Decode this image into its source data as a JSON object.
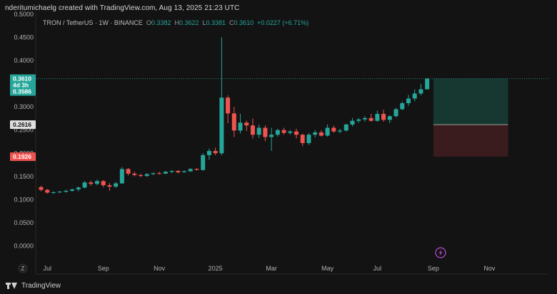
{
  "header": {
    "title": "nderitumichaelg created with TradingView.com, Aug 13, 2025 21:23 UTC"
  },
  "legend": {
    "symbol": "TRON / TetherUS · 1W · BINANCE",
    "o_label": "O",
    "o_value": "0.3382",
    "h_label": "H",
    "h_value": "0.3622",
    "l_label": "L",
    "l_value": "0.3381",
    "c_label": "C",
    "c_value": "0.3610",
    "change": "+0.0227 (+6.71%)"
  },
  "footer": {
    "brand": "TradingView"
  },
  "colors": {
    "up": "#26a69a",
    "down": "#ef5350",
    "background": "#131313",
    "tp_zone": "#163a33",
    "sl_zone": "#3c1c1f"
  },
  "icons": {
    "flash": "lightning-icon",
    "timezone": "z-icon",
    "logo": "tradingview-logo"
  },
  "chart_data": {
    "type": "candlestick",
    "title": "TRON / TetherUS · 1W · BINANCE",
    "ylim": [
      -0.03,
      0.5
    ],
    "y_ticks": [
      0.5,
      0.45,
      0.4,
      0.35,
      0.3,
      0.25,
      0.2,
      0.15,
      0.1,
      0.05,
      0.0
    ],
    "y_tick_labels": [
      "0.5000",
      "0.4500",
      "0.4000",
      "0.3500",
      "0.3000",
      "0.2500",
      "0.2000",
      "0.1500",
      "0.1000",
      "0.0500",
      "0.0000"
    ],
    "x_tick_labels": [
      "Jul",
      "Sep",
      "Nov",
      "2025",
      "Mar",
      "May",
      "Jul",
      "Sep",
      "Nov"
    ],
    "x_tick_weeks": [
      1,
      10,
      19,
      28,
      37,
      46,
      54,
      63,
      72
    ],
    "timezone_label": "Z",
    "price_labels": {
      "current": "0.3610",
      "countdown": "4d 3h",
      "entry_ref": "0.3586",
      "mid": "0.2616",
      "stop": "0.1926"
    },
    "position": {
      "start_week": 63,
      "end_week": 75,
      "target": 0.361,
      "entry": 0.2616,
      "stop": 0.1926
    },
    "candles": [
      {
        "o": 0.127,
        "h": 0.13,
        "l": 0.118,
        "c": 0.121
      },
      {
        "o": 0.121,
        "h": 0.123,
        "l": 0.113,
        "c": 0.115
      },
      {
        "o": 0.115,
        "h": 0.118,
        "l": 0.112,
        "c": 0.116
      },
      {
        "o": 0.116,
        "h": 0.119,
        "l": 0.114,
        "c": 0.117
      },
      {
        "o": 0.117,
        "h": 0.121,
        "l": 0.115,
        "c": 0.119
      },
      {
        "o": 0.119,
        "h": 0.124,
        "l": 0.117,
        "c": 0.122
      },
      {
        "o": 0.122,
        "h": 0.128,
        "l": 0.118,
        "c": 0.126
      },
      {
        "o": 0.126,
        "h": 0.14,
        "l": 0.124,
        "c": 0.137
      },
      {
        "o": 0.137,
        "h": 0.141,
        "l": 0.13,
        "c": 0.134
      },
      {
        "o": 0.134,
        "h": 0.143,
        "l": 0.131,
        "c": 0.14
      },
      {
        "o": 0.14,
        "h": 0.142,
        "l": 0.127,
        "c": 0.131
      },
      {
        "o": 0.131,
        "h": 0.136,
        "l": 0.119,
        "c": 0.128
      },
      {
        "o": 0.128,
        "h": 0.138,
        "l": 0.125,
        "c": 0.135
      },
      {
        "o": 0.135,
        "h": 0.17,
        "l": 0.134,
        "c": 0.166
      },
      {
        "o": 0.166,
        "h": 0.168,
        "l": 0.152,
        "c": 0.156
      },
      {
        "o": 0.156,
        "h": 0.16,
        "l": 0.15,
        "c": 0.153
      },
      {
        "o": 0.153,
        "h": 0.156,
        "l": 0.148,
        "c": 0.151
      },
      {
        "o": 0.151,
        "h": 0.157,
        "l": 0.149,
        "c": 0.155
      },
      {
        "o": 0.155,
        "h": 0.158,
        "l": 0.153,
        "c": 0.157
      },
      {
        "o": 0.157,
        "h": 0.16,
        "l": 0.154,
        "c": 0.156
      },
      {
        "o": 0.156,
        "h": 0.162,
        "l": 0.155,
        "c": 0.16
      },
      {
        "o": 0.16,
        "h": 0.163,
        "l": 0.157,
        "c": 0.162
      },
      {
        "o": 0.162,
        "h": 0.163,
        "l": 0.156,
        "c": 0.159
      },
      {
        "o": 0.159,
        "h": 0.163,
        "l": 0.158,
        "c": 0.161
      },
      {
        "o": 0.161,
        "h": 0.168,
        "l": 0.16,
        "c": 0.166
      },
      {
        "o": 0.166,
        "h": 0.168,
        "l": 0.163,
        "c": 0.164
      },
      {
        "o": 0.164,
        "h": 0.2,
        "l": 0.162,
        "c": 0.196
      },
      {
        "o": 0.196,
        "h": 0.21,
        "l": 0.186,
        "c": 0.205
      },
      {
        "o": 0.205,
        "h": 0.212,
        "l": 0.196,
        "c": 0.2
      },
      {
        "o": 0.2,
        "h": 0.45,
        "l": 0.196,
        "c": 0.32
      },
      {
        "o": 0.32,
        "h": 0.325,
        "l": 0.265,
        "c": 0.286
      },
      {
        "o": 0.286,
        "h": 0.3,
        "l": 0.235,
        "c": 0.249
      },
      {
        "o": 0.249,
        "h": 0.285,
        "l": 0.243,
        "c": 0.266
      },
      {
        "o": 0.266,
        "h": 0.27,
        "l": 0.248,
        "c": 0.26
      },
      {
        "o": 0.26,
        "h": 0.275,
        "l": 0.232,
        "c": 0.24
      },
      {
        "o": 0.24,
        "h": 0.262,
        "l": 0.233,
        "c": 0.255
      },
      {
        "o": 0.255,
        "h": 0.26,
        "l": 0.226,
        "c": 0.235
      },
      {
        "o": 0.235,
        "h": 0.255,
        "l": 0.205,
        "c": 0.24
      },
      {
        "o": 0.24,
        "h": 0.253,
        "l": 0.236,
        "c": 0.25
      },
      {
        "o": 0.25,
        "h": 0.255,
        "l": 0.24,
        "c": 0.244
      },
      {
        "o": 0.244,
        "h": 0.25,
        "l": 0.24,
        "c": 0.247
      },
      {
        "o": 0.247,
        "h": 0.253,
        "l": 0.232,
        "c": 0.24
      },
      {
        "o": 0.24,
        "h": 0.242,
        "l": 0.215,
        "c": 0.222
      },
      {
        "o": 0.222,
        "h": 0.244,
        "l": 0.218,
        "c": 0.24
      },
      {
        "o": 0.24,
        "h": 0.25,
        "l": 0.234,
        "c": 0.245
      },
      {
        "o": 0.245,
        "h": 0.25,
        "l": 0.236,
        "c": 0.238
      },
      {
        "o": 0.238,
        "h": 0.262,
        "l": 0.236,
        "c": 0.255
      },
      {
        "o": 0.255,
        "h": 0.26,
        "l": 0.244,
        "c": 0.247
      },
      {
        "o": 0.247,
        "h": 0.253,
        "l": 0.243,
        "c": 0.249
      },
      {
        "o": 0.249,
        "h": 0.264,
        "l": 0.247,
        "c": 0.262
      },
      {
        "o": 0.262,
        "h": 0.276,
        "l": 0.258,
        "c": 0.27
      },
      {
        "o": 0.27,
        "h": 0.276,
        "l": 0.266,
        "c": 0.273
      },
      {
        "o": 0.273,
        "h": 0.28,
        "l": 0.268,
        "c": 0.276
      },
      {
        "o": 0.276,
        "h": 0.285,
        "l": 0.268,
        "c": 0.27
      },
      {
        "o": 0.27,
        "h": 0.292,
        "l": 0.268,
        "c": 0.285
      },
      {
        "o": 0.285,
        "h": 0.294,
        "l": 0.268,
        "c": 0.272
      },
      {
        "o": 0.272,
        "h": 0.282,
        "l": 0.265,
        "c": 0.28
      },
      {
        "o": 0.28,
        "h": 0.298,
        "l": 0.278,
        "c": 0.295
      },
      {
        "o": 0.295,
        "h": 0.312,
        "l": 0.293,
        "c": 0.308
      },
      {
        "o": 0.308,
        "h": 0.326,
        "l": 0.302,
        "c": 0.318
      },
      {
        "o": 0.318,
        "h": 0.338,
        "l": 0.312,
        "c": 0.329
      },
      {
        "o": 0.329,
        "h": 0.35,
        "l": 0.325,
        "c": 0.338
      },
      {
        "o": 0.338,
        "h": 0.362,
        "l": 0.338,
        "c": 0.361
      }
    ]
  }
}
